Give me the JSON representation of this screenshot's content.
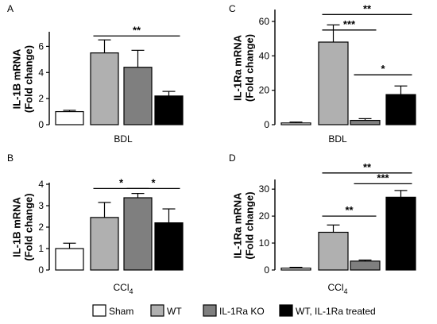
{
  "colors": {
    "Sham": "#ffffff",
    "WT": "#b0b0b0",
    "IL-1Ra KO": "#7f7f7f",
    "WT, IL-1Ra treated": "#000000",
    "axis": "#000000"
  },
  "legend": {
    "items": [
      "Sham",
      "WT",
      "IL-1Ra KO",
      "WT, IL-1Ra treated"
    ],
    "placement": "bottom"
  },
  "chart_data": [
    {
      "type": "bar",
      "panel": "A",
      "ylabel_line1": "IL-1B mRNA",
      "ylabel_line2": "(Fold change)",
      "xlabel": "BDL",
      "xlabel_sub": "",
      "categories": [
        "Sham",
        "WT",
        "IL-1Ra KO",
        "WT, IL-1Ra treated"
      ],
      "values": [
        1.0,
        5.5,
        4.4,
        2.2
      ],
      "errors": [
        0.1,
        1.0,
        1.3,
        0.35
      ],
      "ylim": [
        0,
        7
      ],
      "yticks": [
        0,
        2,
        4,
        6
      ],
      "significance": [
        {
          "from": 1,
          "to": 3,
          "label": "**",
          "y": 6.8
        }
      ]
    },
    {
      "type": "bar",
      "panel": "C",
      "ylabel_line1": "IL-1Ra mRNA",
      "ylabel_line2": "(Fold change)",
      "xlabel": "BDL",
      "xlabel_sub": "",
      "categories": [
        "Sham",
        "WT",
        "IL-1Ra KO",
        "WT, IL-1Ra treated"
      ],
      "values": [
        1.0,
        48,
        2.5,
        17.5
      ],
      "errors": [
        0.5,
        10,
        1.0,
        5
      ],
      "ylim": [
        0,
        66
      ],
      "yticks": [
        0,
        20,
        40,
        60
      ],
      "significance": [
        {
          "from": 1,
          "to": 3,
          "label": "**",
          "y": 64
        },
        {
          "from": 1,
          "to": 2,
          "label": "***",
          "y": 55
        },
        {
          "from": 2,
          "to": 3,
          "label": "*",
          "y": 29
        }
      ]
    },
    {
      "type": "bar",
      "panel": "B",
      "ylabel_line1": "IL-1B mRNA",
      "ylabel_line2": "(Fold change)",
      "xlabel": "CCl",
      "xlabel_sub": "4",
      "categories": [
        "Sham",
        "WT",
        "IL-1Ra KO",
        "WT, IL-1Ra treated"
      ],
      "values": [
        1.0,
        2.45,
        3.37,
        2.2
      ],
      "errors": [
        0.25,
        0.7,
        0.2,
        0.65
      ],
      "ylim": [
        0,
        4
      ],
      "yticks": [
        0,
        1,
        2,
        3,
        4
      ],
      "significance": [
        {
          "from": 1,
          "to": 2,
          "label": "*",
          "y": 3.8
        },
        {
          "from": 2,
          "to": 3,
          "label": "*",
          "y": 3.8
        }
      ]
    },
    {
      "type": "bar",
      "panel": "D",
      "ylabel_line1": "IL-1Ra mRNA",
      "ylabel_line2": "(Fold change)",
      "xlabel": "CCl",
      "xlabel_sub": "4",
      "categories": [
        "Sham",
        "WT",
        "IL-1Ra KO",
        "WT, IL-1Ra treated"
      ],
      "values": [
        0.7,
        14,
        3.3,
        27
      ],
      "errors": [
        0.3,
        2.7,
        0.4,
        2.5
      ],
      "ylim": [
        0,
        33
      ],
      "yticks": [
        0,
        10,
        20,
        30
      ],
      "significance": [
        {
          "from": 1,
          "to": 3,
          "label": "**",
          "y": 36
        },
        {
          "from": 2,
          "to": 3,
          "label": "***",
          "y": 32
        },
        {
          "from": 1,
          "to": 2,
          "label": "**",
          "y": 20
        }
      ]
    }
  ]
}
